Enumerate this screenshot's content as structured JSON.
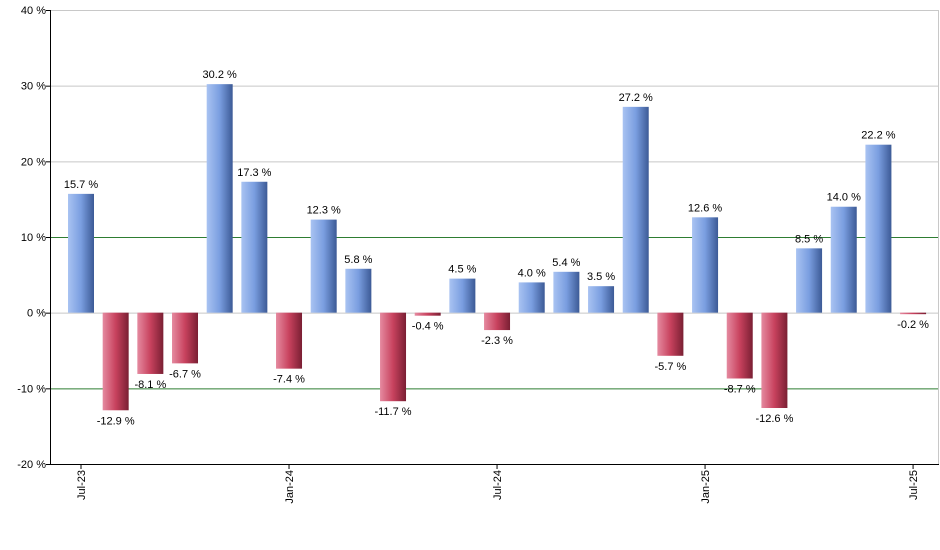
{
  "chart_data": {
    "type": "bar",
    "title": "",
    "xlabel": "",
    "ylabel": "",
    "ylim": [
      -20,
      40
    ],
    "y_ticks": [
      -20,
      -10,
      0,
      10,
      20,
      30,
      40
    ],
    "y_tick_labels": [
      "-20 %",
      "-10 %",
      "0 %",
      "10 %",
      "20 %",
      "30 %",
      "40 %"
    ],
    "x_tick_labels": [
      {
        "index": 0,
        "label": "Jul-23"
      },
      {
        "index": 6,
        "label": "Jan-24"
      },
      {
        "index": 12,
        "label": "Jul-24"
      },
      {
        "index": 18,
        "label": "Jan-25"
      },
      {
        "index": 24,
        "label": "Jul-25"
      }
    ],
    "reference_lines": [
      10,
      -10
    ],
    "values": [
      15.7,
      -12.9,
      -8.1,
      -6.7,
      30.2,
      17.3,
      -7.4,
      12.3,
      5.8,
      -11.7,
      -0.4,
      4.5,
      -2.3,
      4.0,
      5.4,
      3.5,
      27.2,
      -5.7,
      12.6,
      -8.7,
      -12.6,
      8.5,
      14.0,
      22.2,
      -0.2
    ],
    "value_labels": [
      "15.7 %",
      "-12.9 %",
      "-8.1 %",
      "-6.7 %",
      "30.2 %",
      "17.3 %",
      "-7.4 %",
      "12.3 %",
      "5.8 %",
      "-11.7 %",
      "-0.4 %",
      "4.5 %",
      "-2.3 %",
      "4.0 %",
      "5.4 %",
      "3.5 %",
      "27.2 %",
      "-5.7 %",
      "12.6 %",
      "-8.7 %",
      "-12.6 %",
      "8.5 %",
      "14.0 %",
      "22.2 %",
      "-0.2 %"
    ],
    "colors": {
      "positive": "#7a9ee0",
      "negative": "#c8425e",
      "reference_line": "#2e7d32",
      "grid": "#c8c8c8",
      "axis": "#000000"
    }
  }
}
